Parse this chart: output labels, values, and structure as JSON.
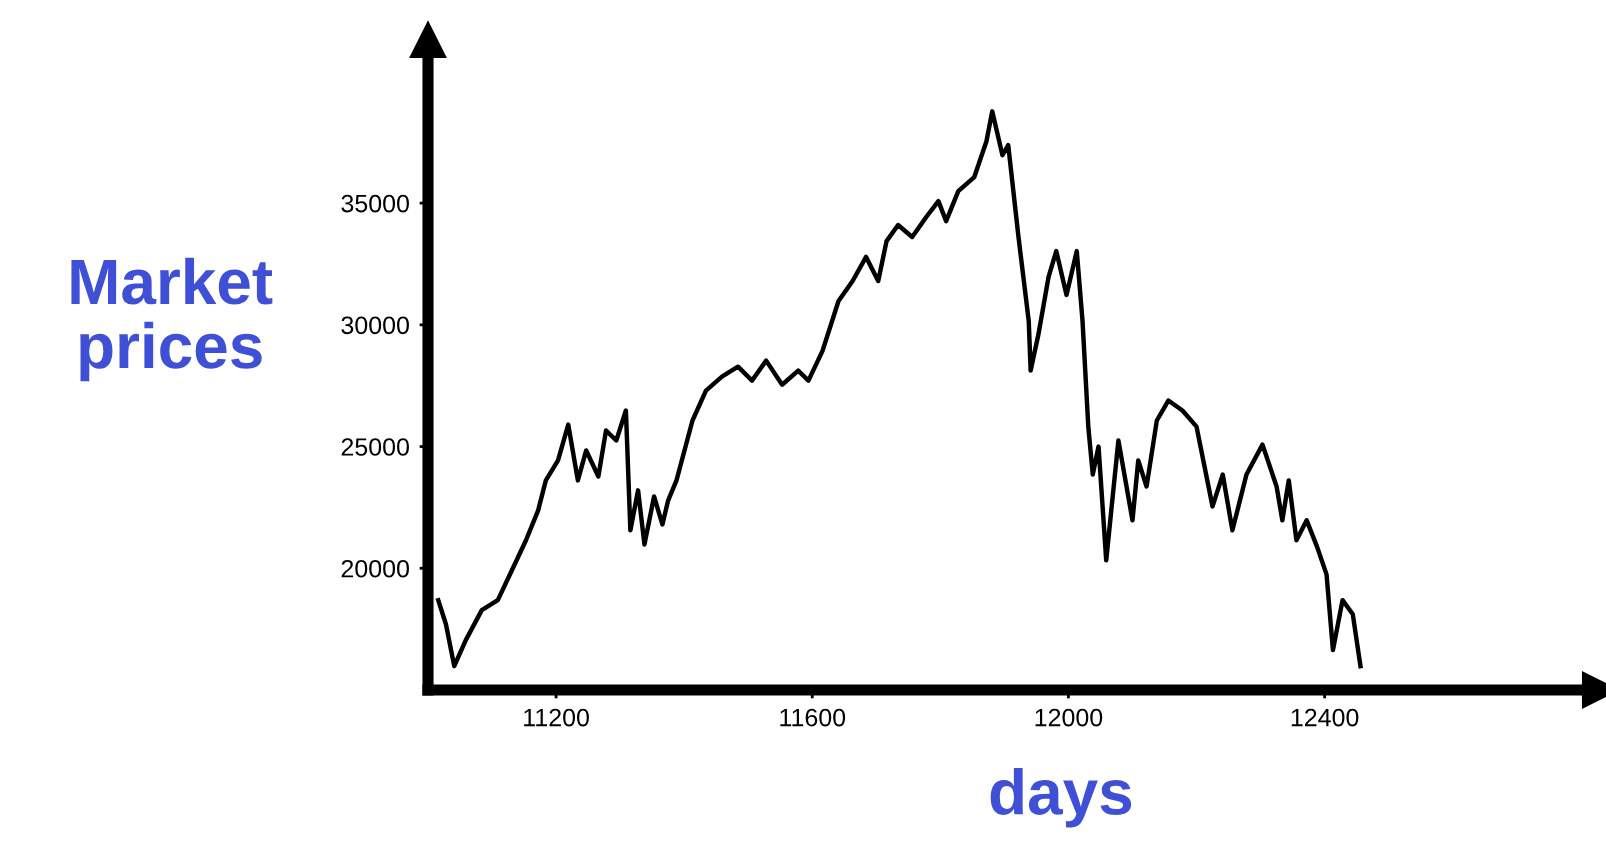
{
  "chart_data": {
    "type": "line",
    "xlabel": "days",
    "ylabel": "Market\nprices",
    "xlim": [
      11000,
      12830
    ],
    "ylim": [
      15000,
      41700
    ],
    "xticks": [
      11200,
      11600,
      12000,
      12400
    ],
    "yticks": [
      20000,
      25000,
      30000,
      35000
    ],
    "grid": false,
    "marker": "none",
    "line_style": "solid",
    "series": [
      {
        "color": "#000000",
        "x": [
          11016,
          11028,
          11041,
          11059,
          11084,
          11109,
          11131,
          11153,
          11172,
          11184,
          11203,
          11219,
          11234,
          11247,
          11266,
          11278,
          11294,
          11309,
          11316,
          11328,
          11338,
          11353,
          11366,
          11375,
          11388,
          11413,
          11434,
          11459,
          11484,
          11506,
          11528,
          11553,
          11578,
          11594,
          11616,
          11641,
          11663,
          11684,
          11703,
          11716,
          11734,
          11756,
          11778,
          11797,
          11809,
          11828,
          11853,
          11872,
          11881,
          11897,
          11906,
          11922,
          11938,
          11941,
          11953,
          11969,
          11981,
          11997,
          12013,
          12022,
          12031,
          12038,
          12047,
          12059,
          12078,
          12100,
          12109,
          12122,
          12138,
          12156,
          12178,
          12200,
          12225,
          12241,
          12256,
          12278,
          12303,
          12325,
          12334,
          12344,
          12356,
          12372,
          12388,
          12403,
          12413,
          12428,
          12444,
          12456
        ],
        "values": [
          18690,
          17700,
          15980,
          17050,
          18280,
          18690,
          19920,
          21150,
          22380,
          23610,
          24430,
          25900,
          23610,
          24840,
          23770,
          25660,
          25250,
          26480,
          21560,
          23200,
          20980,
          22950,
          21800,
          22790,
          23610,
          26070,
          27300,
          27870,
          28280,
          27710,
          28530,
          27540,
          28120,
          27710,
          28930,
          30980,
          31800,
          32790,
          31800,
          33440,
          34100,
          33610,
          34430,
          35080,
          34260,
          35490,
          36070,
          37540,
          38770,
          36970,
          37380,
          33610,
          30160,
          28120,
          29590,
          31970,
          33030,
          31230,
          33030,
          30160,
          25820,
          23850,
          25000,
          20330,
          25250,
          21970,
          24430,
          23360,
          26070,
          26890,
          26480,
          25820,
          22540,
          23850,
          21560,
          23850,
          25080,
          23360,
          21970,
          23610,
          21150,
          21970,
          20900,
          19750,
          16640,
          18690,
          18110,
          15980
        ]
      }
    ]
  }
}
